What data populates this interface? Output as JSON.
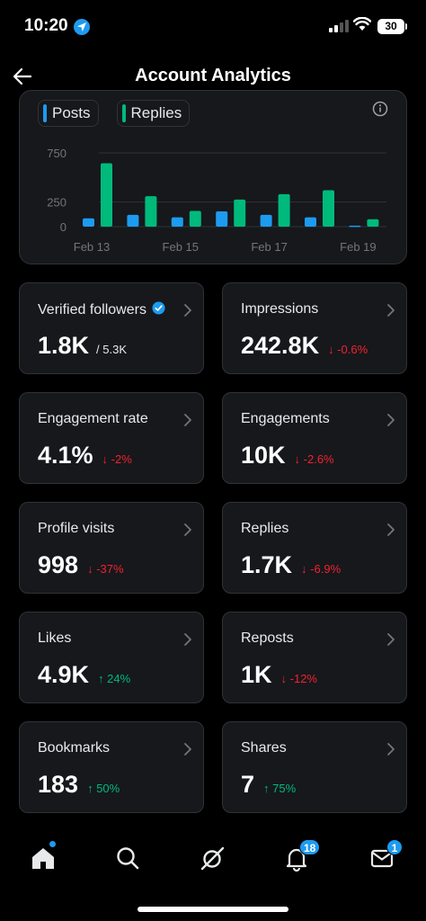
{
  "status_bar": {
    "time": "10:20",
    "battery": "30"
  },
  "header": {
    "title": "Account Analytics"
  },
  "chart_data": {
    "type": "bar",
    "legend": [
      "Posts",
      "Replies"
    ],
    "x_tick_labels": [
      "Feb 13",
      "Feb 15",
      "Feb 17",
      "Feb 19"
    ],
    "y_ticks": [
      0,
      250,
      750
    ],
    "ylim": [
      0,
      750
    ],
    "categories": [
      "Feb 13",
      "Feb 14",
      "Feb 15",
      "Feb 16",
      "Feb 17",
      "Feb 18",
      "Feb 19"
    ],
    "series": [
      {
        "name": "Posts",
        "color": "#1d9bf0",
        "values": [
          85,
          120,
          95,
          155,
          120,
          95,
          10
        ]
      },
      {
        "name": "Replies",
        "color": "#00ba7c",
        "values": [
          645,
          310,
          160,
          275,
          330,
          370,
          75
        ]
      }
    ]
  },
  "metrics": [
    {
      "label": "Verified followers",
      "value": "1.8K",
      "sub": "/ 5.3K",
      "verified": true
    },
    {
      "label": "Impressions",
      "value": "242.8K",
      "delta": "-0.6%",
      "direction": "down"
    },
    {
      "label": "Engagement rate",
      "value": "4.1%",
      "delta": "-2%",
      "direction": "down"
    },
    {
      "label": "Engagements",
      "value": "10K",
      "delta": "-2.6%",
      "direction": "down"
    },
    {
      "label": "Profile visits",
      "value": "998",
      "delta": "-37%",
      "direction": "down"
    },
    {
      "label": "Replies",
      "value": "1.7K",
      "delta": "-6.9%",
      "direction": "down"
    },
    {
      "label": "Likes",
      "value": "4.9K",
      "delta": "24%",
      "direction": "up"
    },
    {
      "label": "Reposts",
      "value": "1K",
      "delta": "-12%",
      "direction": "down"
    },
    {
      "label": "Bookmarks",
      "value": "183",
      "delta": "50%",
      "direction": "up"
    },
    {
      "label": "Shares",
      "value": "7",
      "delta": "75%",
      "direction": "up"
    }
  ],
  "tabbar": {
    "notifications_badge": "18",
    "messages_badge": "1"
  },
  "icons": [
    "location-arrow-icon",
    "back-arrow-icon",
    "info-icon",
    "verified-badge-icon",
    "chevron-right-icon",
    "home-icon",
    "search-icon",
    "grok-icon",
    "bell-icon",
    "mail-icon"
  ]
}
